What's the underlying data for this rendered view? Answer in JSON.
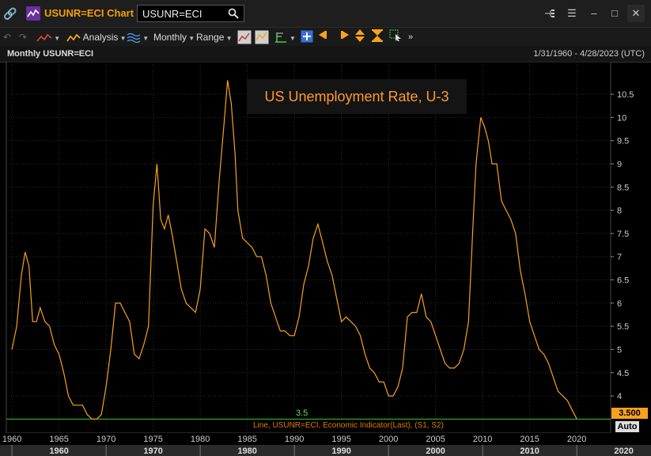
{
  "window": {
    "title": "USUNR=ECI Chart",
    "search_value": "USUNR=ECI",
    "icons": [
      "link-icon",
      "chart-app-icon",
      "search-icon",
      "tree-icon",
      "menu-icon",
      "minimize-icon",
      "maximize-icon",
      "close-icon"
    ]
  },
  "toolbar": {
    "analysis_label": "Analysis",
    "monthly_label": "Monthly",
    "range_label": "Range"
  },
  "chart_header": {
    "title": "Monthly USUNR=ECI",
    "date_range": "1/31/1960 - 4/28/2023 (UTC)"
  },
  "chart_data": {
    "type": "line",
    "title": "US Unemployment Rate, U-3",
    "legend": "Line, USUNR=ECI, Economic Indicator(Last), (S1, S2)",
    "ylim": [
      3.2,
      11.2
    ],
    "xlim": [
      1959.4,
      2023.6
    ],
    "y_ticks": [
      "3.5",
      "4",
      "4.5",
      "5",
      "5.5",
      "6",
      "6.5",
      "7",
      "7.5",
      "8",
      "8.5",
      "9",
      "9.5",
      "10",
      "10.5"
    ],
    "x_ticks": [
      "1960",
      "1965",
      "1970",
      "1975",
      "1980",
      "1985",
      "1990",
      "1995",
      "2000",
      "2005",
      "2010",
      "2015",
      "2020"
    ],
    "decade_labels": [
      "1960",
      "1970",
      "1980",
      "1990",
      "2000",
      "2010",
      "2020"
    ],
    "reference_line": {
      "value": 3.5,
      "label": "3.5"
    },
    "last_value_label": "3.500",
    "auto_label": "Auto",
    "colors": {
      "line": "#f7a21b",
      "reference": "#33cc33",
      "title": "#ff9a2e"
    },
    "series": [
      {
        "x": [
          1960.0,
          1960.5,
          1961.0,
          1961.4,
          1961.8,
          1962.2,
          1962.6,
          1963.0,
          1963.5,
          1964.0,
          1964.5,
          1965.0,
          1965.5,
          1966.0,
          1966.5,
          1967.0,
          1967.5,
          1968.0,
          1968.5,
          1969.0,
          1969.5,
          1970.0,
          1970.5,
          1971.0,
          1971.5,
          1972.0,
          1972.5,
          1973.0,
          1973.5,
          1974.0,
          1974.5,
          1975.0,
          1975.4,
          1975.8,
          1976.2,
          1976.6,
          1977.0,
          1977.5,
          1978.0,
          1978.5,
          1979.0,
          1979.5,
          1980.0,
          1980.5,
          1981.0,
          1981.5,
          1982.0,
          1982.5,
          1982.9,
          1983.3,
          1983.7,
          1984.0,
          1984.5,
          1985.0,
          1985.5,
          1986.0,
          1986.5,
          1987.0,
          1987.5,
          1988.0,
          1988.5,
          1989.0,
          1989.5,
          1990.0,
          1990.5,
          1991.0,
          1991.5,
          1992.0,
          1992.5,
          1993.0,
          1993.5,
          1994.0,
          1994.5,
          1995.0,
          1995.5,
          1996.0,
          1996.5,
          1997.0,
          1997.5,
          1998.0,
          1998.5,
          1999.0,
          1999.5,
          2000.0,
          2000.5,
          2001.0,
          2001.5,
          2002.0,
          2002.5,
          2003.0,
          2003.5,
          2004.0,
          2004.5,
          2005.0,
          2005.5,
          2006.0,
          2006.5,
          2007.0,
          2007.5,
          2008.0,
          2008.5,
          2009.0,
          2009.3,
          2009.8,
          2010.2,
          2010.6,
          2011.0,
          2011.5,
          2012.0,
          2012.5,
          2013.0,
          2013.5,
          2014.0,
          2014.5,
          2015.0,
          2015.5,
          2016.0,
          2016.5,
          2017.0,
          2017.5,
          2018.0,
          2018.5,
          2019.0,
          2019.5,
          2020.0
        ],
        "y": [
          5.0,
          5.5,
          6.6,
          7.1,
          6.8,
          5.6,
          5.6,
          5.9,
          5.6,
          5.5,
          5.1,
          4.9,
          4.5,
          4.0,
          3.8,
          3.8,
          3.8,
          3.6,
          3.5,
          3.5,
          3.6,
          4.2,
          5.0,
          6.0,
          6.0,
          5.8,
          5.6,
          4.9,
          4.8,
          5.1,
          5.5,
          8.1,
          9.0,
          7.8,
          7.6,
          7.9,
          7.5,
          6.9,
          6.3,
          6.0,
          5.9,
          5.8,
          6.3,
          7.6,
          7.5,
          7.2,
          8.6,
          9.8,
          10.8,
          10.3,
          9.2,
          8.0,
          7.4,
          7.3,
          7.2,
          7.0,
          7.0,
          6.6,
          6.0,
          5.7,
          5.4,
          5.4,
          5.3,
          5.3,
          5.7,
          6.4,
          6.8,
          7.4,
          7.7,
          7.3,
          6.9,
          6.6,
          6.1,
          5.6,
          5.7,
          5.6,
          5.5,
          5.3,
          4.9,
          4.6,
          4.5,
          4.3,
          4.3,
          4.0,
          4.0,
          4.2,
          4.6,
          5.7,
          5.8,
          5.8,
          6.2,
          5.7,
          5.6,
          5.3,
          5.0,
          4.7,
          4.6,
          4.6,
          4.7,
          5.0,
          5.6,
          7.8,
          9.0,
          10.0,
          9.8,
          9.5,
          9.0,
          9.0,
          8.2,
          8.0,
          7.8,
          7.5,
          6.7,
          6.2,
          5.6,
          5.3,
          5.0,
          4.9,
          4.7,
          4.4,
          4.1,
          4.0,
          3.9,
          3.7,
          3.5
        ]
      }
    ]
  }
}
